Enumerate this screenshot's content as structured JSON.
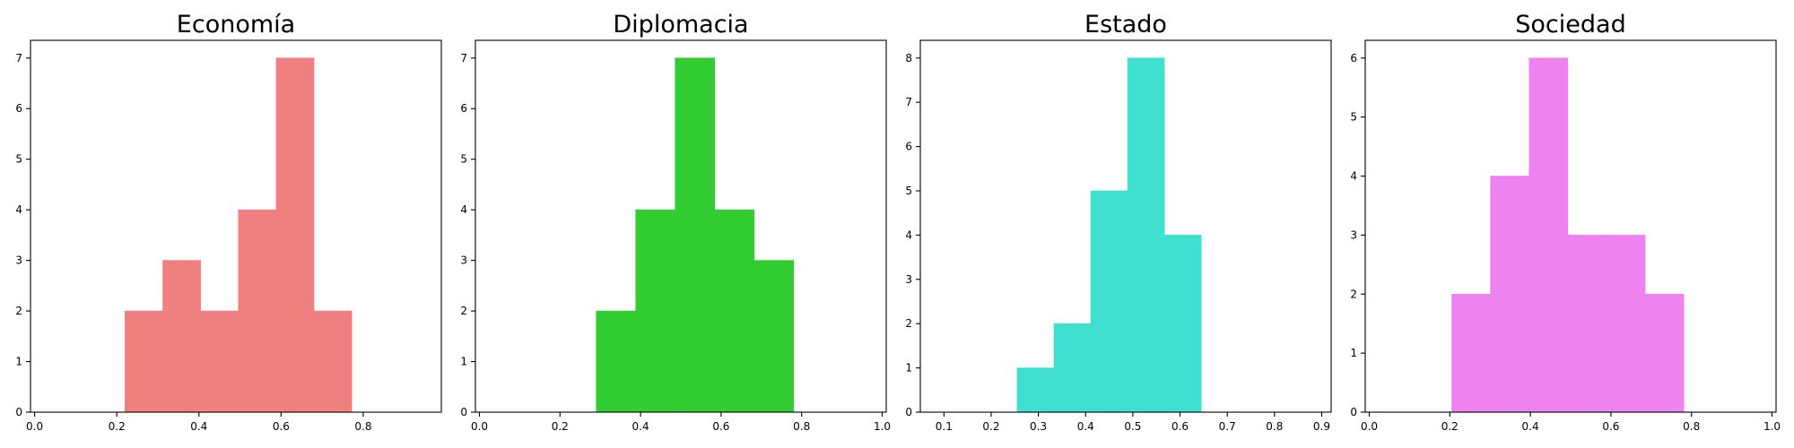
{
  "chart_data": [
    {
      "type": "histogram",
      "title": "Economía",
      "color": "#F08080",
      "xlim": [
        -0.01,
        0.99
      ],
      "ylim": [
        0,
        7.35
      ],
      "xticks": [
        0.0,
        0.2,
        0.4,
        0.6,
        0.8
      ],
      "xtick_labels": [
        "0.0",
        "0.2",
        "0.4",
        "0.6",
        "0.8"
      ],
      "yticks": [
        0,
        1,
        2,
        3,
        4,
        5,
        6,
        7
      ],
      "ytick_labels": [
        "0",
        "1",
        "2",
        "3",
        "4",
        "5",
        "6",
        "7"
      ],
      "bin_edges": [
        0.22,
        0.312,
        0.404,
        0.496,
        0.588,
        0.68,
        0.772
      ],
      "counts": [
        2,
        3,
        2,
        4,
        7,
        2
      ]
    },
    {
      "type": "histogram",
      "title": "Diplomacia",
      "color": "#32CD32",
      "xlim": [
        -0.01,
        1.01
      ],
      "ylim": [
        0,
        7.35
      ],
      "xticks": [
        0.0,
        0.2,
        0.4,
        0.6,
        0.8,
        1.0
      ],
      "xtick_labels": [
        "0.0",
        "0.2",
        "0.4",
        "0.6",
        "0.8",
        "1.0"
      ],
      "yticks": [
        0,
        1,
        2,
        3,
        4,
        5,
        6,
        7
      ],
      "ytick_labels": [
        "0",
        "1",
        "2",
        "3",
        "4",
        "5",
        "6",
        "7"
      ],
      "bin_edges": [
        0.29,
        0.388,
        0.486,
        0.584,
        0.682,
        0.78
      ],
      "counts": [
        2,
        4,
        7,
        4,
        3
      ]
    },
    {
      "type": "histogram",
      "title": "Estado",
      "color": "#40E0D0",
      "xlim": [
        0.05,
        0.92
      ],
      "ylim": [
        0,
        8.4
      ],
      "xticks": [
        0.1,
        0.2,
        0.3,
        0.4,
        0.5,
        0.6,
        0.7,
        0.8,
        0.9
      ],
      "xtick_labels": [
        "0.1",
        "0.2",
        "0.3",
        "0.4",
        "0.5",
        "0.6",
        "0.7",
        "0.8",
        "0.9"
      ],
      "yticks": [
        0,
        1,
        2,
        3,
        4,
        5,
        6,
        7,
        8
      ],
      "ytick_labels": [
        "0",
        "1",
        "2",
        "3",
        "4",
        "5",
        "6",
        "7",
        "8"
      ],
      "bin_edges": [
        0.255,
        0.333,
        0.411,
        0.489,
        0.567,
        0.645
      ],
      "counts": [
        1,
        2,
        5,
        8,
        4
      ]
    },
    {
      "type": "histogram",
      "title": "Sociedad",
      "color": "#EE82EE",
      "xlim": [
        -0.01,
        1.01
      ],
      "ylim": [
        0,
        6.3
      ],
      "xticks": [
        0.0,
        0.2,
        0.4,
        0.6,
        0.8,
        1.0
      ],
      "xtick_labels": [
        "0.0",
        "0.2",
        "0.4",
        "0.6",
        "0.8",
        "1.0"
      ],
      "yticks": [
        0,
        1,
        2,
        3,
        4,
        5,
        6
      ],
      "ytick_labels": [
        "0",
        "1",
        "2",
        "3",
        "4",
        "5",
        "6"
      ],
      "bin_edges": [
        0.205,
        0.301,
        0.397,
        0.493,
        0.589,
        0.685,
        0.781
      ],
      "counts": [
        2,
        4,
        6,
        3,
        3,
        2
      ]
    }
  ]
}
